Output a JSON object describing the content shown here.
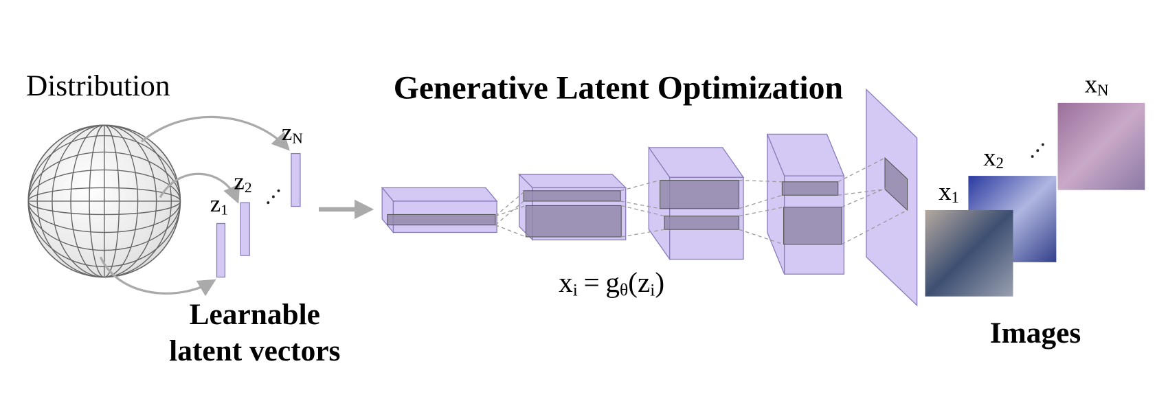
{
  "title": "Generative Latent Optimization",
  "distribution": {
    "label": "Distribution"
  },
  "latent_vectors": {
    "label_lines": [
      "Learnable",
      "latent vectors"
    ],
    "items": [
      {
        "base": "z",
        "sub": "1"
      },
      {
        "base": "z",
        "sub": "2"
      },
      {
        "base": "z",
        "sub": "N"
      }
    ]
  },
  "images": {
    "label": "Images",
    "items": [
      {
        "base": "x",
        "sub": "1"
      },
      {
        "base": "x",
        "sub": "2"
      },
      {
        "base": "x",
        "sub": "N"
      }
    ]
  },
  "equation": {
    "lhs": {
      "base": "x",
      "sub": "i"
    },
    "op": "=",
    "fn": {
      "base": "g",
      "sub": "θ"
    },
    "open": "(",
    "arg": {
      "base": "z",
      "sub": "i"
    },
    "close": ")"
  }
}
